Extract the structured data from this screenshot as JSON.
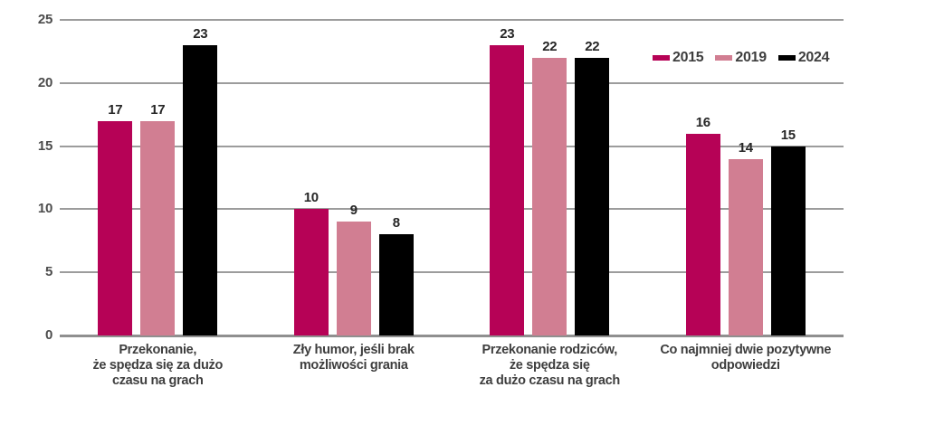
{
  "chart_data": {
    "type": "bar",
    "title": "",
    "xlabel": "",
    "ylabel": "",
    "categories": [
      "Przekonanie,\nże spędza się za dużo\nczasu na grach",
      "Zły humor, jeśli brak\nmożliwości grania",
      "Przekonanie rodziców,\nże spędza się\nza dużo czasu na grach",
      "Co najmniej dwie pozytywne\nodpowiedzi"
    ],
    "series": [
      {
        "name": "2015",
        "color": "#b60256",
        "values": [
          17,
          10,
          23,
          16
        ]
      },
      {
        "name": "2019",
        "color": "#d17e92",
        "values": [
          17,
          9,
          22,
          14
        ]
      },
      {
        "name": "2024",
        "color": "#000000",
        "values": [
          23,
          8,
          22,
          15
        ]
      }
    ],
    "y_axis": {
      "min": 0,
      "max": 25,
      "step": 5,
      "tick_labels": [
        "0",
        "5",
        "10",
        "15",
        "20",
        "25"
      ]
    },
    "grid": true,
    "value_labels_shown": true,
    "legend": {
      "position": "top-right",
      "entries": [
        "2015",
        "2019",
        "2024"
      ]
    }
  },
  "style": {
    "background": "#ffffff",
    "grid_color": "#9c9c9c",
    "baseline_color": "#8f8f8f",
    "tick_label_color": "#4c4c4c",
    "value_label_color": "#262626",
    "category_label_color": "#3e3e3e",
    "legend_text_color": "#3e3e3e"
  }
}
